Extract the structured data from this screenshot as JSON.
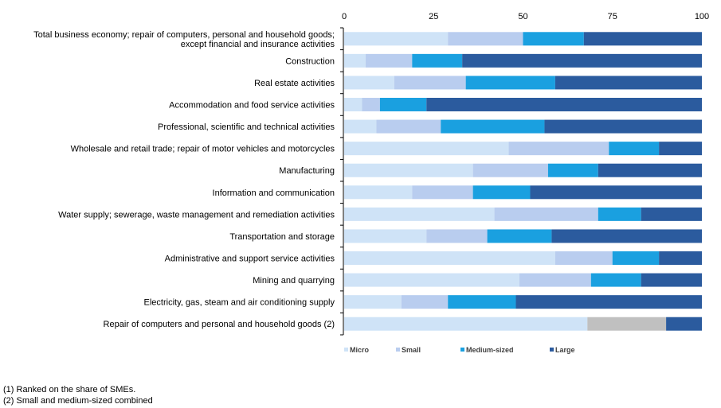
{
  "chart_data": {
    "type": "bar",
    "orientation": "horizontal",
    "stacked": true,
    "xlim": [
      0,
      100
    ],
    "xticks": [
      0,
      25,
      50,
      75,
      100
    ],
    "grid": false,
    "legend_position": "bottom",
    "categories": [
      "Total business economy; repair of computers, personal and household goods;\nexcept financial and insurance activities",
      "Construction",
      "Real estate activities",
      "Accommodation and food service activities",
      "Professional, scientific and technical activities",
      "Wholesale and retail trade; repair of motor vehicles and motorcycles",
      "Manufacturing",
      "Information and communication",
      "Water supply; sewerage, waste management and remediation activities",
      "Transportation and storage",
      "Administrative and support service activities",
      "Mining and quarrying",
      "Electricity, gas, steam and air conditioning supply",
      "Repair of computers and personal and household goods (2)"
    ],
    "series": [
      {
        "name": "Micro",
        "color": "#cfe3f7",
        "values": [
          29,
          6,
          14,
          5,
          9,
          46,
          36,
          19,
          42,
          23,
          59,
          49,
          16,
          68
        ]
      },
      {
        "name": "Small",
        "color": "#b9cdef",
        "values": [
          21,
          13,
          20,
          5,
          18,
          28,
          21,
          17,
          29,
          17,
          16,
          20,
          13,
          0
        ]
      },
      {
        "name": "Medium-sized",
        "color": "#1aa0e0",
        "values": [
          17,
          14,
          25,
          13,
          29,
          14,
          14,
          16,
          12,
          18,
          13,
          14,
          19,
          0
        ]
      },
      {
        "name": "Large",
        "color": "#2b5b9e",
        "values": [
          33,
          67,
          41,
          77,
          44,
          12,
          29,
          48,
          17,
          42,
          12,
          17,
          52,
          10
        ]
      }
    ],
    "sme_combined": {
      "color": "#c0c0c0",
      "values": [
        0,
        0,
        0,
        0,
        0,
        0,
        0,
        0,
        0,
        0,
        0,
        0,
        0,
        22
      ]
    }
  },
  "footnotes": [
    "(1) Ranked on the share of SMEs.",
    "(2) Small and medium-sized combined"
  ]
}
